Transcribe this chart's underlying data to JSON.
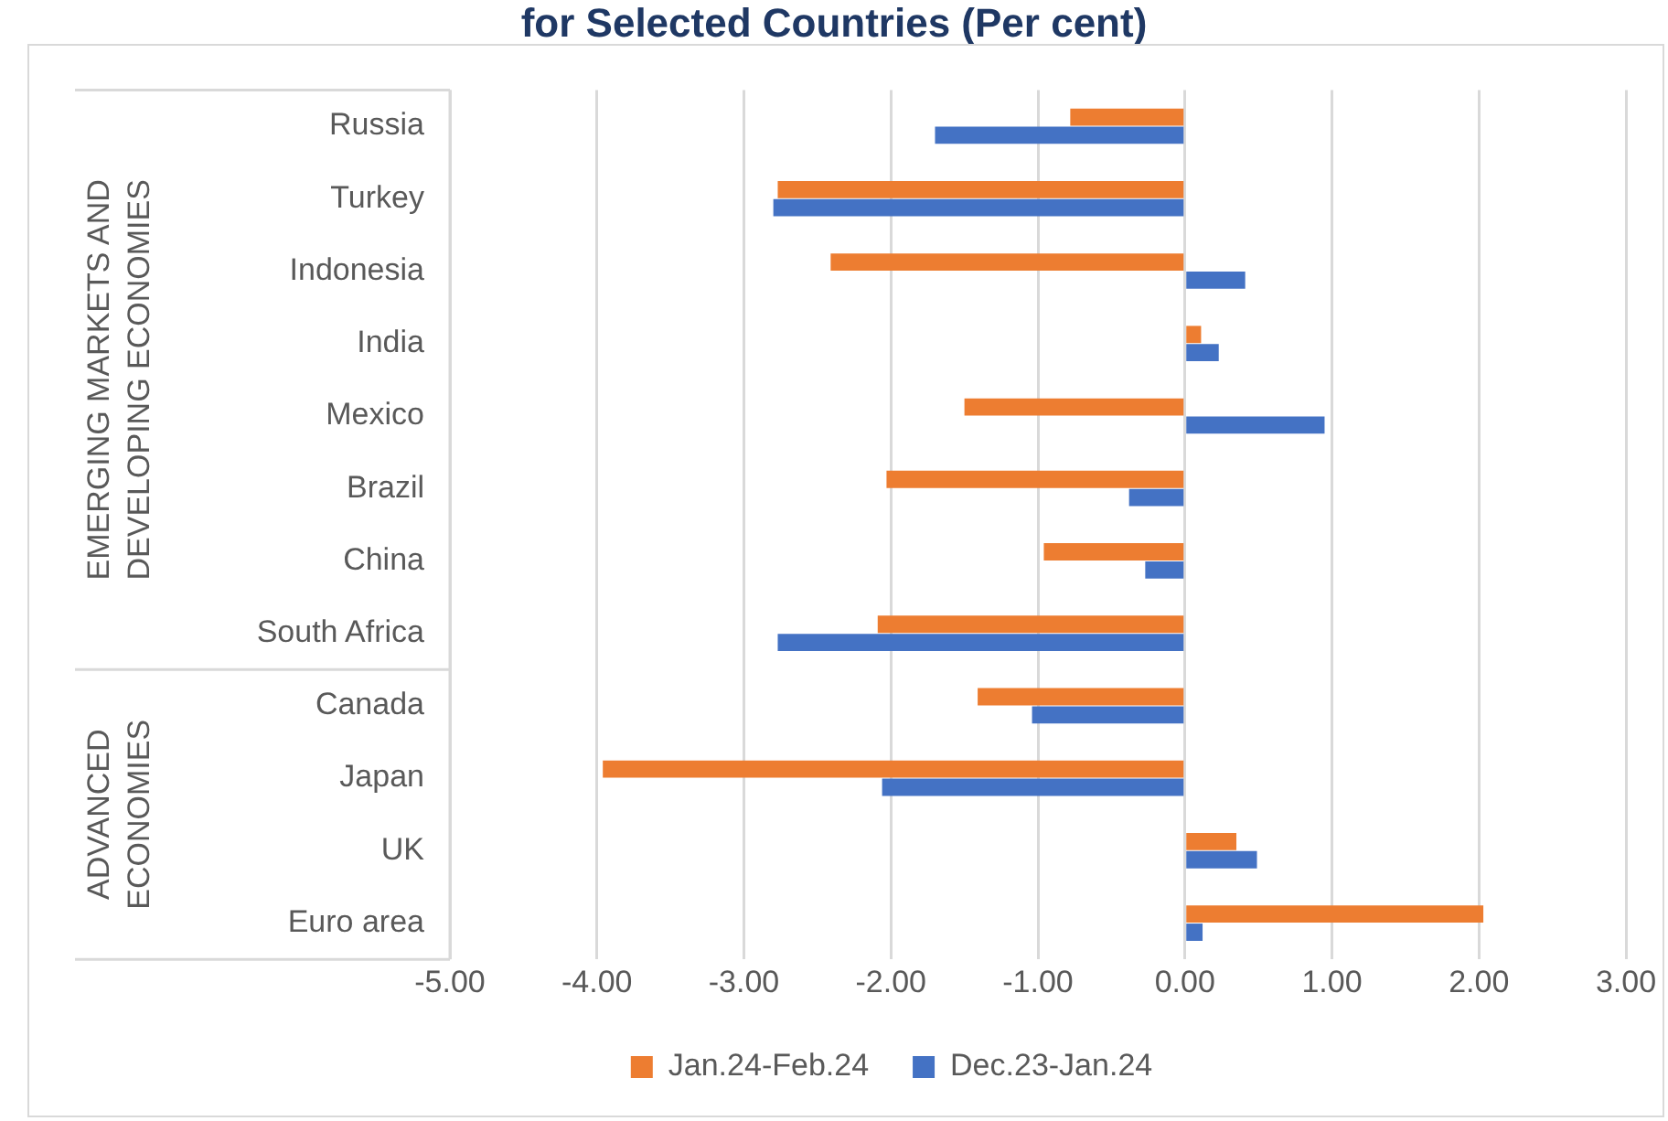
{
  "chart_data": {
    "type": "bar",
    "orientation": "horizontal",
    "title": "for Selected Countries (Per cent)",
    "categories": [
      "Russia",
      "Turkey",
      "Indonesia",
      "India",
      "Mexico",
      "Brazil",
      "China",
      "South Africa",
      "Canada",
      "Japan",
      "UK",
      "Euro area"
    ],
    "series": [
      {
        "name": "Jan.24-Feb.24",
        "color": "#ed7d31",
        "values": [
          -0.78,
          -2.77,
          -2.41,
          0.11,
          -1.5,
          -2.03,
          -0.96,
          -2.09,
          -1.41,
          -3.96,
          0.35,
          2.03
        ]
      },
      {
        "name": "Dec.23-Jan.24",
        "color": "#4472c4",
        "values": [
          -1.7,
          -2.8,
          0.41,
          0.23,
          0.95,
          -0.38,
          -0.27,
          -2.77,
          -1.04,
          -2.06,
          0.49,
          0.12
        ]
      }
    ],
    "annotations": [
      "EMERGING MARKETS AND DEVELOPING ECONOMIES",
      "ADVANCED ECONOMIES"
    ],
    "xlim": [
      -5,
      3
    ],
    "xticks": [
      {
        "value": -5,
        "label": "-5.00"
      },
      {
        "value": -4,
        "label": "-4.00"
      },
      {
        "value": -3,
        "label": "-3.00"
      },
      {
        "value": -2,
        "label": "-2.00"
      },
      {
        "value": -1,
        "label": "-1.00"
      },
      {
        "value": 0,
        "label": "0.00"
      },
      {
        "value": 1,
        "label": "1.00"
      },
      {
        "value": 2,
        "label": "2.00"
      },
      {
        "value": 3,
        "label": "3.00"
      }
    ],
    "grid": "x",
    "legend": "bottom"
  }
}
